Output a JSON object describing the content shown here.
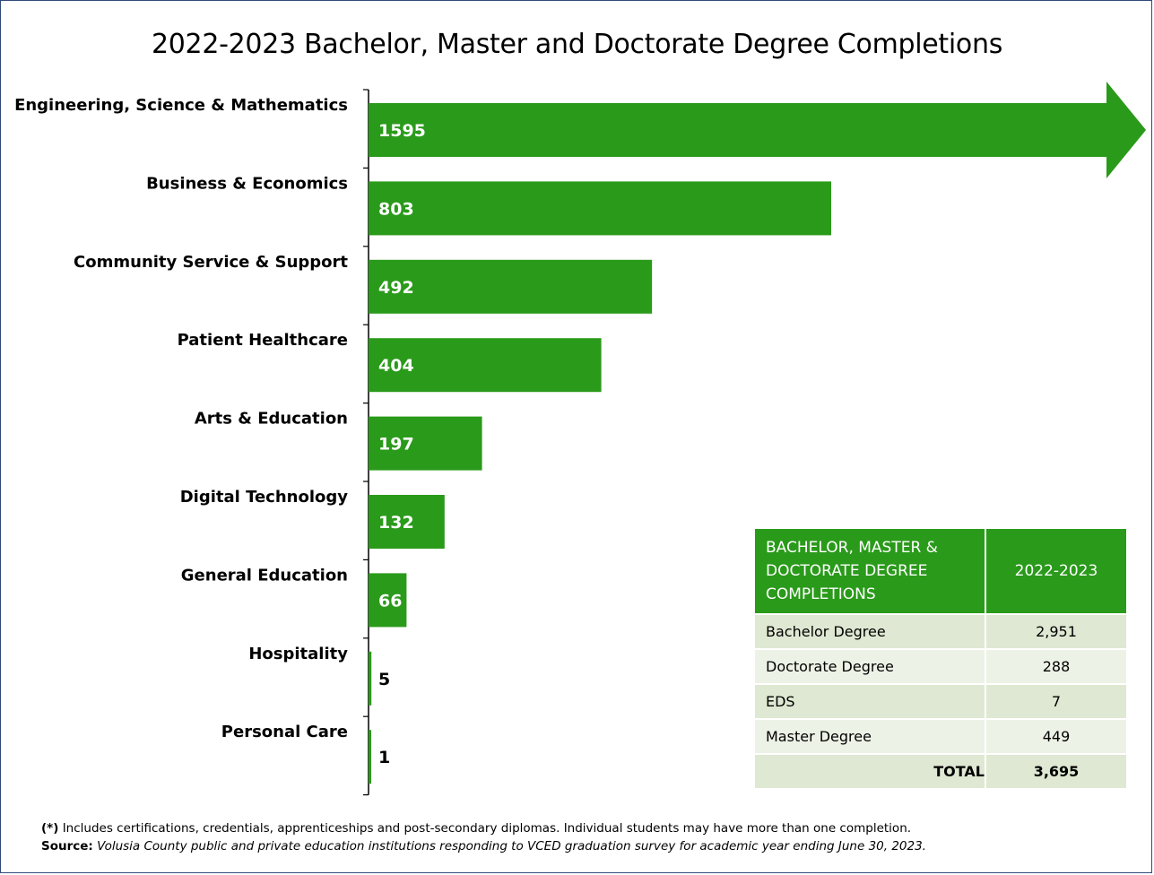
{
  "chart_data": {
    "type": "bar",
    "orientation": "horizontal",
    "title": "2022-2023 Bachelor, Master and Doctorate Degree Completions",
    "categories": [
      "Engineering, Science & Mathematics",
      "Business & Economics",
      "Community Service & Support",
      "Patient Healthcare",
      "Arts & Education",
      "Digital Technology",
      "General Education",
      "Hospitality",
      "Personal Care"
    ],
    "values": [
      1595,
      803,
      492,
      404,
      197,
      132,
      66,
      5,
      1
    ],
    "data_labels": [
      "1595",
      "803",
      "492",
      "404",
      "197",
      "132",
      "66",
      "5",
      "1"
    ],
    "bar_color": "#2a9a1a",
    "first_bar_shape": "arrow",
    "grid": false
  },
  "table": {
    "header_label": "BACHELOR, MASTER & DOCTORATE DEGREE COMPLETIONS",
    "header_year": "2022-2023",
    "rows": [
      {
        "label": "Bachelor Degree",
        "value": "2,951"
      },
      {
        "label": "Doctorate Degree",
        "value": "288"
      },
      {
        "label": "EDS",
        "value": "7"
      },
      {
        "label": "Master Degree",
        "value": "449"
      }
    ],
    "total_label": "TOTAL",
    "total_value": "3,695"
  },
  "footer": {
    "note_mark": "(*)",
    "note_text": " Includes certifications, credentials, apprenticeships and post-secondary diplomas. Individual students may have more than one completion.",
    "source_label": "Source:",
    "source_text": " Volusia County public and private education institutions responding to VCED graduation survey for academic year ending June 30, 2023."
  }
}
